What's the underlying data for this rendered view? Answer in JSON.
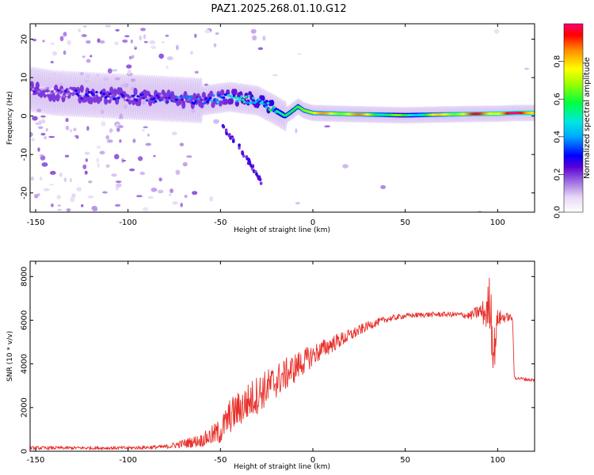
{
  "title": "PAZ1.2025.268.01.10.G12",
  "chart_data": [
    {
      "type": "heatmap",
      "title": "PAZ1.2025.268.01.10.G12",
      "xlabel": "Height of straight line (km)",
      "ylabel": "Frequency (Hz)",
      "xlim": [
        -153,
        120
      ],
      "ylim": [
        -25,
        24
      ],
      "x_ticks": [
        -150,
        -100,
        -50,
        0,
        50,
        100
      ],
      "y_ticks": [
        -20,
        -10,
        0,
        10,
        20
      ],
      "colorbar": {
        "label": "Normalized spectral amplitude",
        "range": [
          0,
          1
        ],
        "ticks": [
          0,
          0.2,
          0.4,
          0.6,
          0.8
        ],
        "tick_labels": [
          "0.0",
          "0.2",
          "0.4",
          "0.6",
          "0.8"
        ]
      },
      "ridge": {
        "x": [
          -153,
          -140,
          -120,
          -100,
          -80,
          -60,
          -45,
          -30,
          -22,
          -15,
          -12,
          -8,
          -5,
          0,
          20,
          50,
          80,
          95,
          100,
          110,
          120
        ],
        "freq_hz": [
          7,
          6,
          5.5,
          5,
          4.5,
          4,
          5,
          4,
          2,
          0,
          1,
          2.5,
          1.5,
          0.8,
          0.5,
          0.2,
          0.5,
          0.6,
          0.6,
          0.8,
          0.8
        ],
        "amplitude": [
          0.15,
          0.15,
          0.18,
          0.2,
          0.25,
          0.3,
          0.4,
          0.45,
          0.5,
          0.55,
          0.55,
          0.6,
          0.65,
          0.7,
          0.8,
          0.5,
          0.8,
          0.85,
          0.85,
          0.9,
          0.9
        ]
      },
      "side_branch": {
        "x": [
          -50,
          -40,
          -33,
          -28
        ],
        "freq_hz": [
          -2,
          -8,
          -13,
          -17
        ]
      }
    },
    {
      "type": "line",
      "xlabel": "Height of straight line (km)",
      "ylabel": "SNR (10 * v/v)",
      "xlim": [
        -153,
        120
      ],
      "ylim": [
        0,
        8700
      ],
      "x_ticks": [
        -150,
        -100,
        -50,
        0,
        50,
        100
      ],
      "y_ticks": [
        0,
        2000,
        4000,
        6000,
        8000
      ],
      "color": "#e8302a",
      "series": [
        {
          "name": "SNR",
          "x": [
            -153,
            -100,
            -80,
            -60,
            -50,
            -45,
            -30,
            -20,
            -10,
            0,
            10,
            20,
            30,
            40,
            50,
            60,
            70,
            80,
            85,
            90,
            94,
            96,
            97,
            98,
            100,
            105,
            108,
            109,
            110,
            115,
            120
          ],
          "values": [
            150,
            150,
            200,
            500,
            900,
            1600,
            2600,
            3200,
            3800,
            4400,
            4900,
            5300,
            5750,
            6050,
            6200,
            6250,
            6270,
            6250,
            6200,
            6400,
            6300,
            7000,
            5500,
            4500,
            6100,
            6150,
            6100,
            3400,
            3350,
            3300,
            3250
          ],
          "noise_amplitude": [
            80,
            80,
            100,
            300,
            600,
            800,
            900,
            800,
            700,
            500,
            400,
            300,
            200,
            150,
            120,
            120,
            120,
            130,
            180,
            350,
            800,
            1500,
            1500,
            1200,
            400,
            200,
            150,
            100,
            80,
            80,
            80
          ]
        }
      ]
    }
  ]
}
